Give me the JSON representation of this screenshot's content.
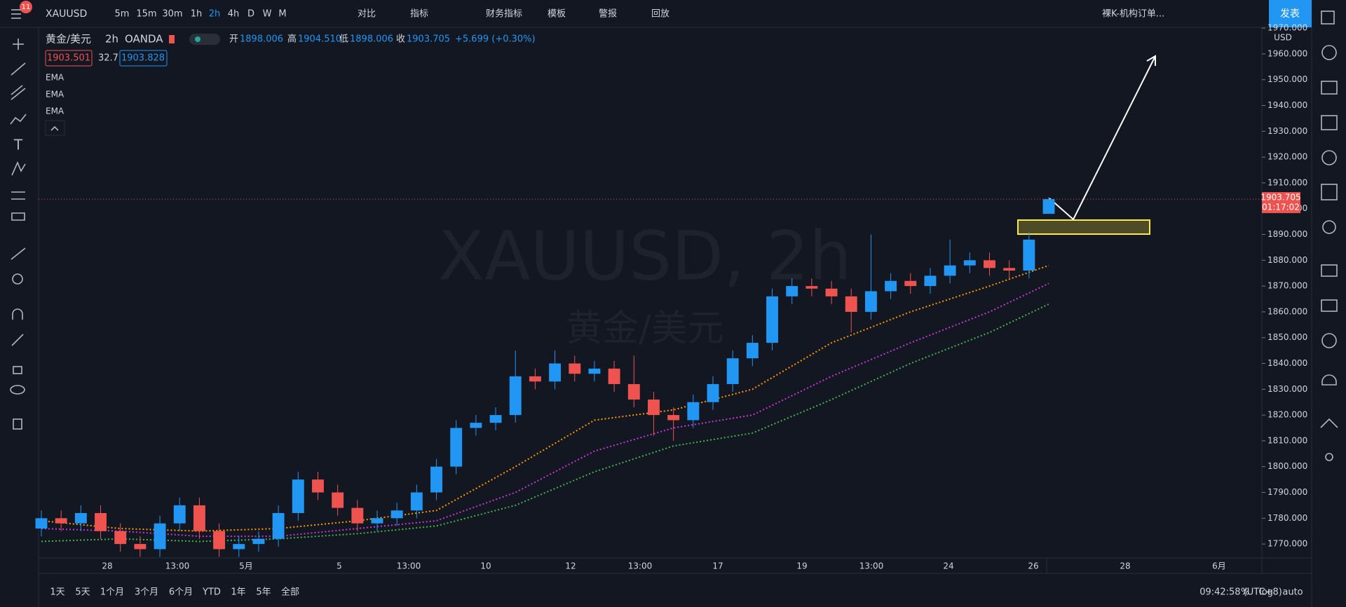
{
  "toolbar": {
    "symbol": "XAUUSD",
    "badge": "11",
    "intervals": [
      "5m",
      "15m",
      "30m",
      "1h",
      "2h",
      "4h",
      "D",
      "W",
      "M"
    ],
    "buttons": [
      "对比",
      "指标",
      "财务指标",
      "模板",
      "警报",
      "回放"
    ],
    "template": "裸K-机构订单...",
    "publish": "发表"
  },
  "legend": {
    "name": "黄金/美元",
    "interval": "2h",
    "exchange": "OANDA",
    "open_label": "开",
    "open": "1898.006",
    "high_label": "高",
    "high": "1904.510",
    "low_label": "低",
    "low": "1898.006",
    "close_label": "收",
    "close": "1903.705",
    "change": "+5.699 (+0.30%)",
    "bid": "1903.501",
    "spread": "32.7",
    "ask": "1903.828",
    "indicators": [
      "EMA",
      "EMA",
      "EMA"
    ]
  },
  "watermark": {
    "symbol": "XAUUSD, 2h",
    "name": "黄金/美元"
  },
  "chart_data": {
    "type": "candlestick",
    "up_color": "#2196f3",
    "down_color": "#ef5350",
    "open": [
      1776,
      1780,
      1778,
      1782,
      1775,
      1770,
      1768,
      1778,
      1785,
      1775,
      1768,
      1770,
      1772,
      1782,
      1795,
      1790,
      1784,
      1778,
      1780,
      1783,
      1790,
      1800,
      1815,
      1817,
      1820,
      1835,
      1833,
      1840,
      1836,
      1838,
      1832,
      1826,
      1820,
      1818,
      1825,
      1832,
      1842,
      1848,
      1866,
      1870,
      1869,
      1866,
      1860,
      1868,
      1872,
      1870,
      1874,
      1878,
      1880,
      1877,
      1876,
      1898.006
    ],
    "high": [
      1783,
      1783,
      1785,
      1785,
      1778,
      1773,
      1781,
      1788,
      1788,
      1778,
      1773,
      1775,
      1785,
      1798,
      1798,
      1793,
      1787,
      1783,
      1786,
      1793,
      1803,
      1818,
      1820,
      1823,
      1845,
      1838,
      1845,
      1843,
      1841,
      1841,
      1843,
      1829,
      1823,
      1828,
      1835,
      1845,
      1851,
      1869,
      1873,
      1873,
      1872,
      1869,
      1890,
      1875,
      1875,
      1877,
      1888,
      1883,
      1883,
      1880,
      1891,
      1904.51
    ],
    "low": [
      1773,
      1775,
      1775,
      1772,
      1767,
      1765,
      1765,
      1775,
      1772,
      1765,
      1765,
      1767,
      1769,
      1779,
      1787,
      1781,
      1775,
      1775,
      1777,
      1780,
      1787,
      1797,
      1812,
      1814,
      1817,
      1830,
      1830,
      1833,
      1833,
      1829,
      1823,
      1812,
      1810,
      1815,
      1822,
      1829,
      1839,
      1845,
      1863,
      1866,
      1863,
      1852,
      1857,
      1865,
      1867,
      1867,
      1871,
      1875,
      1874,
      1873,
      1873,
      1898.006
    ],
    "close": [
      1780,
      1778,
      1782,
      1775,
      1770,
      1768,
      1778,
      1785,
      1775,
      1768,
      1770,
      1772,
      1782,
      1795,
      1790,
      1784,
      1778,
      1780,
      1783,
      1790,
      1800,
      1815,
      1817,
      1820,
      1835,
      1833,
      1840,
      1836,
      1838,
      1832,
      1826,
      1820,
      1818,
      1825,
      1832,
      1842,
      1848,
      1866,
      1870,
      1869,
      1866,
      1860,
      1868,
      1872,
      1870,
      1874,
      1878,
      1880,
      1877,
      1876,
      1888,
      1903.705
    ],
    "ema_x": [
      0,
      4,
      8,
      12,
      16,
      20,
      24,
      28,
      32,
      36,
      40,
      44,
      48,
      51
    ],
    "ema": [
      {
        "color": "#ff9800",
        "values": [
          1779,
          1776,
          1775,
          1776,
          1779,
          1783,
          1800,
          1818,
          1822,
          1830,
          1848,
          1860,
          1870,
          1878
        ]
      },
      {
        "color": "#c837d8",
        "values": [
          1776,
          1775,
          1773,
          1773,
          1776,
          1779,
          1790,
          1806,
          1815,
          1820,
          1835,
          1848,
          1860,
          1871
        ]
      },
      {
        "color": "#43b649",
        "values": [
          1771,
          1772,
          1771,
          1772,
          1774,
          1777,
          1785,
          1798,
          1808,
          1813,
          1826,
          1840,
          1852,
          1863
        ]
      }
    ],
    "ylim": [
      1764.6,
      1970.3
    ],
    "yticks": [
      {
        "value": 1770,
        "label": "1770.000"
      },
      {
        "value": 1780,
        "label": "1780.000"
      },
      {
        "value": 1790,
        "label": "1790.000"
      },
      {
        "value": 1800,
        "label": "1800.000"
      },
      {
        "value": 1810,
        "label": "1810.000"
      },
      {
        "value": 1820,
        "label": "1820.000"
      },
      {
        "value": 1830,
        "label": "1830.000"
      },
      {
        "value": 1840,
        "label": "1840.000"
      },
      {
        "value": 1850,
        "label": "1850.000"
      },
      {
        "value": 1860,
        "label": "1860.000"
      },
      {
        "value": 1870,
        "label": "1870.000"
      },
      {
        "value": 1880,
        "label": "1880.000"
      },
      {
        "value": 1890,
        "label": "1890.000"
      },
      {
        "value": 1900,
        "label": "1900.000"
      },
      {
        "value": 1910,
        "label": "1910.000"
      },
      {
        "value": 1920,
        "label": "1920.000"
      },
      {
        "value": 1930,
        "label": "1930.000"
      },
      {
        "value": 1940,
        "label": "1940.000"
      },
      {
        "value": 1950,
        "label": "1950.000"
      },
      {
        "value": 1960,
        "label": "1960.000"
      },
      {
        "value": 1970,
        "label": "1970.000"
      }
    ],
    "price_unit": "USD",
    "last_price": {
      "value": 1903.705,
      "label": "1903.705"
    },
    "countdown": "01:17:02",
    "x_labels": [
      "28",
      "13:00",
      "5月",
      "5",
      "13:00",
      "10",
      "12",
      "13:00",
      "17",
      "19",
      "13:00",
      "24",
      "26",
      "28",
      "6月"
    ]
  },
  "bottom": {
    "ranges": [
      "1天",
      "5天",
      "1个月",
      "3个月",
      "6个月",
      "YTD",
      "1年",
      "5年",
      "全部"
    ],
    "time": "09:42:58 (UTC+8)",
    "options": [
      "%",
      "log",
      "auto"
    ]
  }
}
